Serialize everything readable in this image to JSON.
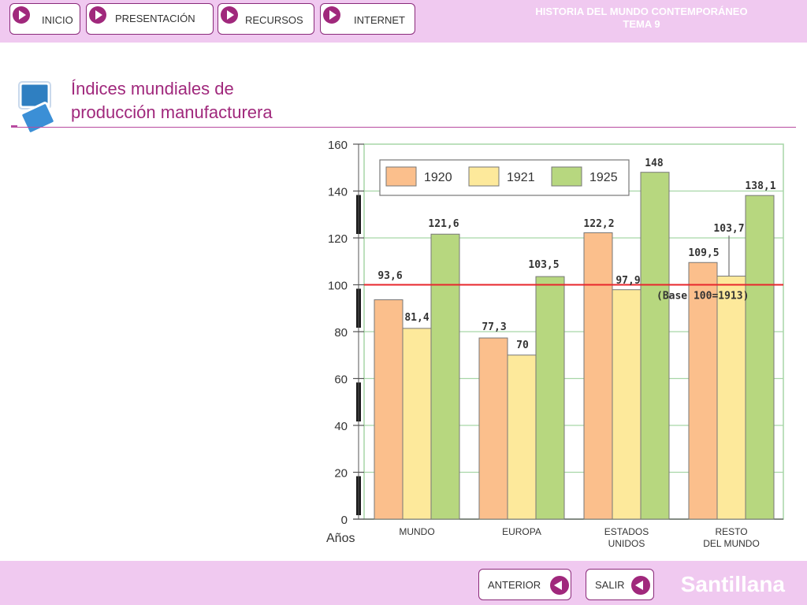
{
  "header": {
    "nav": [
      "INICIO",
      "PRESENTACIÓN",
      "RECURSOS",
      "INTERNET"
    ],
    "title_line1": "HISTORIA DEL MUNDO CONTEMPORÁNEO",
    "title_line2": "TEMA 9"
  },
  "page": {
    "title_line1": "Índices mundiales de",
    "title_line2": "producción manufacturera"
  },
  "footer": {
    "prev_label": "ANTERIOR",
    "exit_label": "SALIR",
    "brand": "Santillana"
  },
  "colors": {
    "series": [
      "#fbbf8c",
      "#fde99b",
      "#b7d77f"
    ],
    "reference_line": "#e8262c",
    "grid": "#a7d6a7",
    "accent": "#a0287c"
  },
  "chart_data": {
    "type": "bar",
    "xlabel": "Años",
    "ylim": [
      0,
      160
    ],
    "yticks": [
      0,
      20,
      40,
      60,
      80,
      100,
      120,
      140,
      160
    ],
    "categories": [
      [
        "MUNDO"
      ],
      [
        "EUROPA"
      ],
      [
        "ESTADOS",
        "UNIDOS"
      ],
      [
        "RESTO",
        "DEL MUNDO"
      ]
    ],
    "series": [
      {
        "name": "1920",
        "values": [
          93.6,
          77.3,
          122.2,
          109.5
        ],
        "labels": [
          "93,6",
          "77,3",
          "122,2",
          "109,5"
        ]
      },
      {
        "name": "1921",
        "values": [
          81.4,
          70,
          97.9,
          103.7
        ],
        "labels": [
          "81,4",
          "70",
          "97,9",
          "103,7"
        ]
      },
      {
        "name": "1925",
        "values": [
          121.6,
          103.5,
          148,
          138.1
        ],
        "labels": [
          "121,6",
          "103,5",
          "148",
          "138,1"
        ]
      }
    ],
    "reference": {
      "value": 100,
      "label": "(Base 100=1913)"
    },
    "legend": "top-left",
    "grid": true
  }
}
